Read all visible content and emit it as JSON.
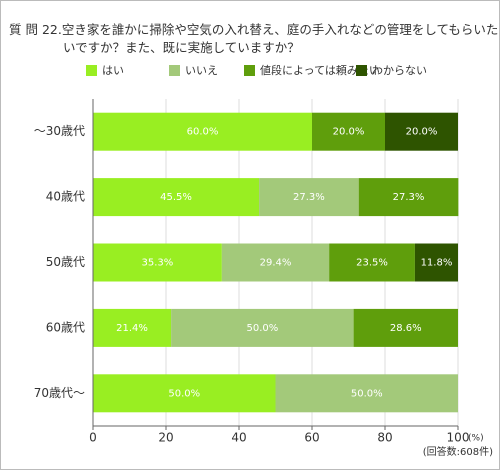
{
  "chart_data": {
    "type": "stacked-bar-horizontal",
    "title": "質 問 22.空き家を誰かに掃除や空気の入れ替え、庭の手入れなどの管理をしてもらいたいですか？また、既に実施していますか？",
    "categories": [
      "～30歳代",
      "40歳代",
      "50歳代",
      "60歳代",
      "70歳代～"
    ],
    "series": [
      {
        "name": "はい",
        "color": "#99ee22",
        "values": [
          60.0,
          45.5,
          35.3,
          21.4,
          50.0
        ],
        "value_labels": [
          "60.0%",
          "45.5%",
          "35.3%",
          "21.4%",
          "50.0%"
        ]
      },
      {
        "name": "いいえ",
        "color": "#a3c97a",
        "values": [
          null,
          27.3,
          29.4,
          50.0,
          50.0
        ],
        "value_labels": [
          null,
          "27.3%",
          "29.4%",
          "50.0%",
          "50.0%"
        ]
      },
      {
        "name": "値段によっては頼みたい",
        "color": "#5f9e0c",
        "values": [
          20.0,
          27.3,
          23.5,
          28.6,
          null
        ],
        "value_labels": [
          "20.0%",
          "27.3%",
          "23.5%",
          "28.6%",
          null
        ]
      },
      {
        "name": "わからない",
        "color": "#2e5400",
        "values": [
          20.0,
          null,
          11.8,
          null,
          null
        ],
        "value_labels": [
          "20.0%",
          null,
          "11.8%",
          null,
          null
        ]
      }
    ],
    "xlim": [
      0,
      100
    ],
    "xticks": [
      0,
      20,
      40,
      60,
      80,
      100
    ],
    "x_unit": "(%)",
    "note": "(回答数:608件)",
    "grid": true
  }
}
